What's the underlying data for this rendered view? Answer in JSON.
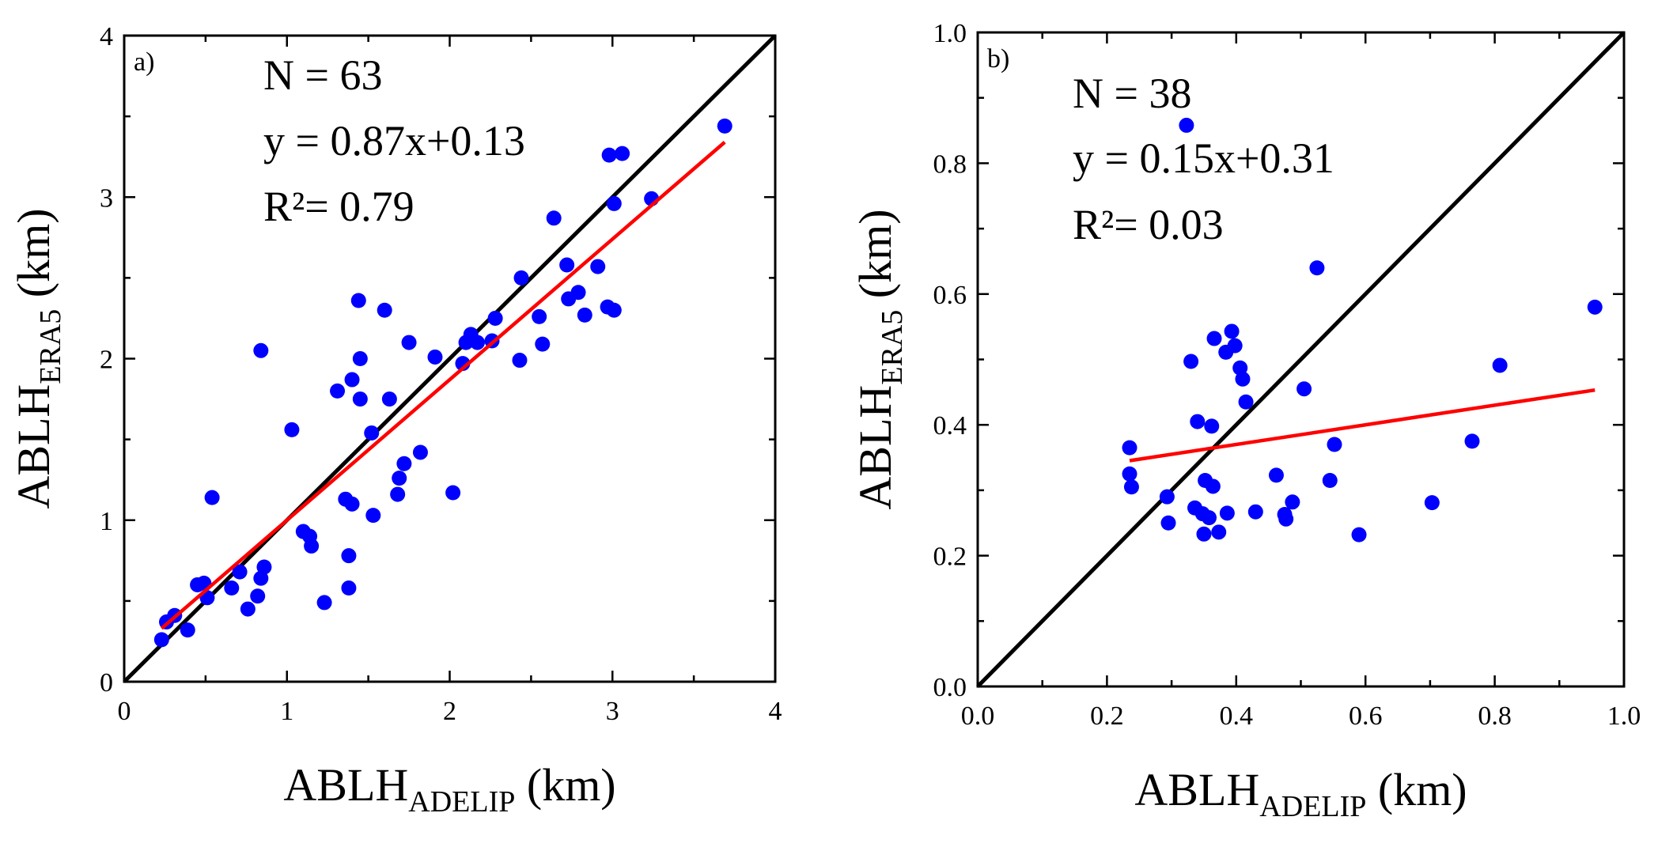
{
  "chart_data": [
    {
      "type": "scatter",
      "panel_label": "a)",
      "annotations": [
        "N = 63",
        "y = 0.87x+0.13",
        "R²= 0.79"
      ],
      "xlabel": {
        "main": "ABLH",
        "sub": "ADELIP",
        "unit": " (km)"
      },
      "ylabel": {
        "main": "ABLH",
        "sub": "ERA5",
        "unit": " (km)"
      },
      "xlim": [
        0,
        4
      ],
      "ylim": [
        0,
        4
      ],
      "xticks": [
        "0",
        "1",
        "2",
        "3",
        "4"
      ],
      "yticks": [
        "0",
        "1",
        "2",
        "3",
        "4"
      ],
      "tick_values": [
        0,
        1,
        2,
        3,
        4
      ],
      "point_color": "#0000ff",
      "fit_color": "#ff0000",
      "identity_color": "#000000",
      "identity_line": [
        [
          0,
          0
        ],
        [
          4,
          4
        ]
      ],
      "fit_line": {
        "slope": 0.87,
        "intercept": 0.13,
        "x_range": [
          0.23,
          3.69
        ]
      },
      "points": [
        [
          0.23,
          0.26
        ],
        [
          0.26,
          0.37
        ],
        [
          0.31,
          0.41
        ],
        [
          0.39,
          0.32
        ],
        [
          0.45,
          0.6
        ],
        [
          0.49,
          0.61
        ],
        [
          0.51,
          0.52
        ],
        [
          0.54,
          1.14
        ],
        [
          0.66,
          0.58
        ],
        [
          0.71,
          0.68
        ],
        [
          0.76,
          0.45
        ],
        [
          0.82,
          0.53
        ],
        [
          0.84,
          0.64
        ],
        [
          0.84,
          2.05
        ],
        [
          0.86,
          0.71
        ],
        [
          1.03,
          1.56
        ],
        [
          1.1,
          0.93
        ],
        [
          1.14,
          0.9
        ],
        [
          1.15,
          0.84
        ],
        [
          1.23,
          0.49
        ],
        [
          1.31,
          1.8
        ],
        [
          1.36,
          1.13
        ],
        [
          1.38,
          0.58
        ],
        [
          1.38,
          0.78
        ],
        [
          1.4,
          1.1
        ],
        [
          1.4,
          1.87
        ],
        [
          1.44,
          2.36
        ],
        [
          1.45,
          1.75
        ],
        [
          1.45,
          2.0
        ],
        [
          1.52,
          1.54
        ],
        [
          1.53,
          1.03
        ],
        [
          1.6,
          2.3
        ],
        [
          1.63,
          1.75
        ],
        [
          1.68,
          1.16
        ],
        [
          1.69,
          1.26
        ],
        [
          1.72,
          1.35
        ],
        [
          1.75,
          2.1
        ],
        [
          1.82,
          1.42
        ],
        [
          1.91,
          2.01
        ],
        [
          2.02,
          1.17
        ],
        [
          2.08,
          1.97
        ],
        [
          2.13,
          2.15
        ],
        [
          2.17,
          2.1
        ],
        [
          2.26,
          2.11
        ],
        [
          2.28,
          2.25
        ],
        [
          2.43,
          1.99
        ],
        [
          2.44,
          2.5
        ],
        [
          2.55,
          2.26
        ],
        [
          2.57,
          2.09
        ],
        [
          2.64,
          2.87
        ],
        [
          2.72,
          2.58
        ],
        [
          2.73,
          2.37
        ],
        [
          2.79,
          2.41
        ],
        [
          2.83,
          2.27
        ],
        [
          2.91,
          2.57
        ],
        [
          2.97,
          2.32
        ],
        [
          2.98,
          3.26
        ],
        [
          3.01,
          2.3
        ],
        [
          3.01,
          2.96
        ],
        [
          3.06,
          3.27
        ],
        [
          3.24,
          2.99
        ],
        [
          3.69,
          3.44
        ],
        [
          2.1,
          2.1
        ]
      ]
    },
    {
      "type": "scatter",
      "panel_label": "b)",
      "annotations": [
        "N = 38",
        "y = 0.15x+0.31",
        "R²= 0.03"
      ],
      "xlabel": {
        "main": "ABLH",
        "sub": "ADELIP",
        "unit": " (km)"
      },
      "ylabel": {
        "main": "ABLH",
        "sub": "ERA5",
        "unit": " (km)"
      },
      "xlim": [
        0,
        1
      ],
      "ylim": [
        0,
        1
      ],
      "xticks": [
        "0.0",
        "0.2",
        "0.4",
        "0.6",
        "0.8",
        "1.0"
      ],
      "yticks": [
        "0.0",
        "0.2",
        "0.4",
        "0.6",
        "0.8",
        "1.0"
      ],
      "tick_values": [
        0,
        0.2,
        0.4,
        0.6,
        0.8,
        1.0
      ],
      "point_color": "#0000ff",
      "fit_color": "#ff0000",
      "identity_color": "#000000",
      "identity_line": [
        [
          0,
          0
        ],
        [
          1,
          1
        ]
      ],
      "fit_line": {
        "slope": 0.15,
        "intercept": 0.31,
        "x_range": [
          0.235,
          0.955
        ]
      },
      "points": [
        [
          0.235,
          0.365
        ],
        [
          0.235,
          0.325
        ],
        [
          0.238,
          0.305
        ],
        [
          0.293,
          0.29
        ],
        [
          0.295,
          0.25
        ],
        [
          0.323,
          0.858
        ],
        [
          0.33,
          0.497
        ],
        [
          0.336,
          0.273
        ],
        [
          0.34,
          0.405
        ],
        [
          0.348,
          0.264
        ],
        [
          0.35,
          0.233
        ],
        [
          0.352,
          0.315
        ],
        [
          0.358,
          0.258
        ],
        [
          0.362,
          0.398
        ],
        [
          0.364,
          0.306
        ],
        [
          0.366,
          0.532
        ],
        [
          0.373,
          0.236
        ],
        [
          0.384,
          0.511
        ],
        [
          0.386,
          0.265
        ],
        [
          0.393,
          0.543
        ],
        [
          0.398,
          0.521
        ],
        [
          0.406,
          0.487
        ],
        [
          0.415,
          0.435
        ],
        [
          0.43,
          0.267
        ],
        [
          0.462,
          0.323
        ],
        [
          0.475,
          0.263
        ],
        [
          0.477,
          0.256
        ],
        [
          0.487,
          0.282
        ],
        [
          0.505,
          0.455
        ],
        [
          0.525,
          0.64
        ],
        [
          0.545,
          0.315
        ],
        [
          0.552,
          0.37
        ],
        [
          0.59,
          0.232
        ],
        [
          0.703,
          0.281
        ],
        [
          0.765,
          0.375
        ],
        [
          0.808,
          0.491
        ],
        [
          0.955,
          0.58
        ],
        [
          0.41,
          0.47
        ]
      ]
    }
  ]
}
